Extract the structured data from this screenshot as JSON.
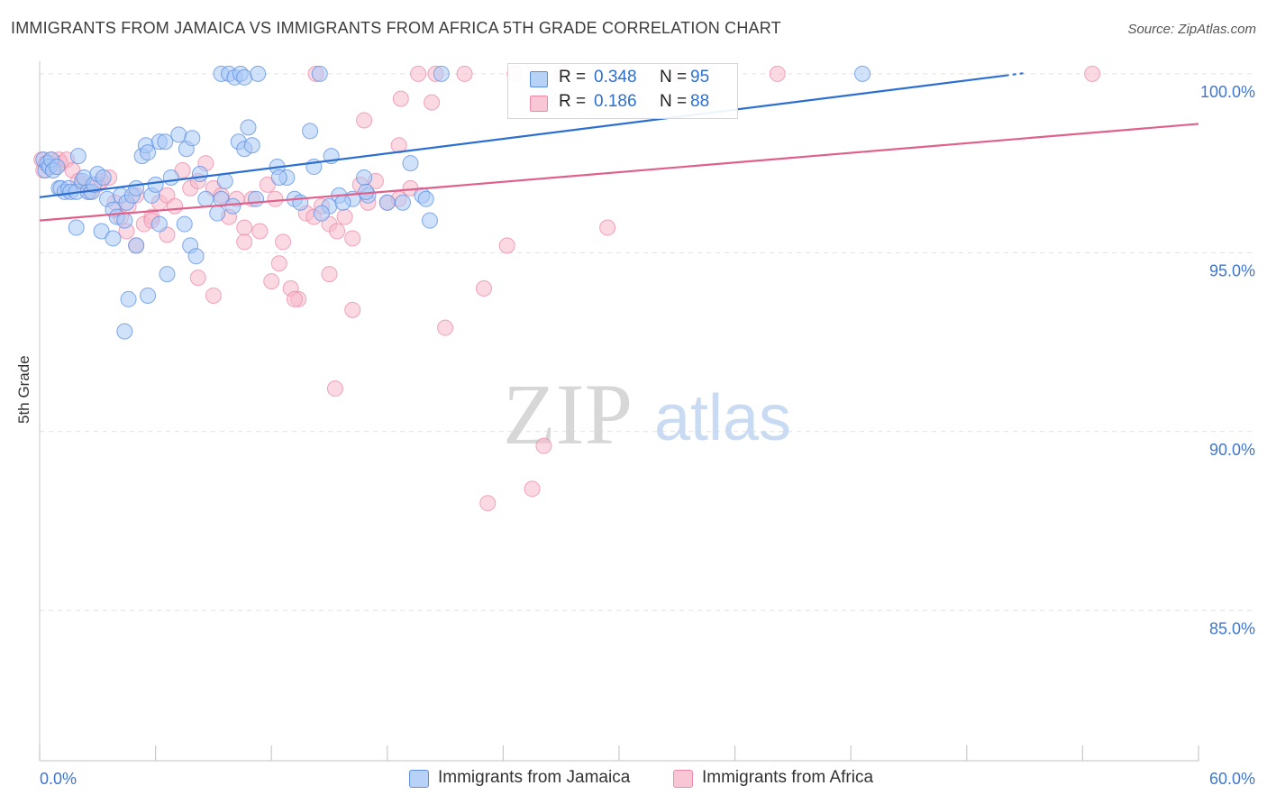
{
  "title": "IMMIGRANTS FROM JAMAICA VS IMMIGRANTS FROM AFRICA 5TH GRADE CORRELATION CHART",
  "source": "Source: ZipAtlas.com",
  "watermark": {
    "zip": "ZIP",
    "atlas": "atlas"
  },
  "colors": {
    "jamaica_fill": "#a9c8f5",
    "jamaica_stroke": "#5b8fe0",
    "jamaica_line": "#2c6fd1",
    "africa_fill": "#f7b9cc",
    "africa_stroke": "#ea8aa8",
    "africa_line": "#e0608c",
    "grid": "#e1e1e1",
    "tick_label": "#3f76cf"
  },
  "legend": {
    "jamaica": {
      "r_label": "R =",
      "r_value": "0.348",
      "n_label": "N =",
      "n_value": "95"
    },
    "africa": {
      "r_label": "R =",
      "r_value": "0.186",
      "n_label": "N =",
      "n_value": "88"
    }
  },
  "bottom_legend": {
    "jamaica": "Immigrants from Jamaica",
    "africa": "Immigrants from Africa"
  },
  "chart_data": {
    "type": "scatter",
    "title": "IMMIGRANTS FROM JAMAICA VS IMMIGRANTS FROM AFRICA 5TH GRADE CORRELATION CHART",
    "xlabel": "",
    "ylabel": "5th Grade",
    "xlim": [
      0,
      60
    ],
    "ylim": [
      80.8,
      100.5
    ],
    "x_tick_labels": [
      "0.0%",
      "60.0%"
    ],
    "y_ticks": [
      85,
      90,
      95,
      100
    ],
    "y_tick_labels": [
      "85.0%",
      "90.0%",
      "95.0%",
      "100.0%"
    ],
    "grid": true,
    "legend_position": "top-center",
    "series": [
      {
        "name": "Immigrants from Jamaica",
        "R": 0.348,
        "N": 95,
        "trend": {
          "x": [
            0,
            50
          ],
          "y": [
            96.55,
            99.95
          ]
        },
        "points": [
          [
            0.2,
            97.6
          ],
          [
            0.3,
            97.3
          ],
          [
            0.4,
            97.5
          ],
          [
            0.5,
            97.4
          ],
          [
            0.6,
            97.6
          ],
          [
            0.7,
            97.3
          ],
          [
            0.9,
            97.4
          ],
          [
            1.0,
            96.8
          ],
          [
            1.1,
            96.8
          ],
          [
            1.3,
            96.7
          ],
          [
            1.5,
            96.8
          ],
          [
            1.6,
            96.7
          ],
          [
            1.9,
            96.7
          ],
          [
            2.0,
            97.7
          ],
          [
            2.2,
            97.0
          ],
          [
            2.3,
            97.1
          ],
          [
            2.5,
            96.7
          ],
          [
            2.7,
            96.7
          ],
          [
            2.8,
            96.9
          ],
          [
            3.0,
            97.2
          ],
          [
            3.3,
            97.1
          ],
          [
            3.5,
            96.5
          ],
          [
            3.8,
            96.2
          ],
          [
            4.0,
            96.0
          ],
          [
            4.2,
            96.6
          ],
          [
            4.4,
            95.9
          ],
          [
            4.5,
            96.4
          ],
          [
            4.8,
            96.6
          ],
          [
            5.0,
            96.8
          ],
          [
            5.3,
            97.7
          ],
          [
            5.5,
            98.0
          ],
          [
            5.6,
            97.8
          ],
          [
            5.8,
            96.6
          ],
          [
            6.0,
            96.9
          ],
          [
            6.2,
            98.1
          ],
          [
            6.5,
            98.1
          ],
          [
            6.8,
            97.1
          ],
          [
            7.2,
            98.3
          ],
          [
            7.6,
            97.9
          ],
          [
            7.9,
            98.2
          ],
          [
            8.3,
            97.2
          ],
          [
            8.6,
            96.5
          ],
          [
            9.2,
            96.1
          ],
          [
            9.6,
            97.0
          ],
          [
            10.3,
            98.1
          ],
          [
            10.6,
            97.9
          ],
          [
            10.8,
            98.5
          ],
          [
            11.0,
            98.0
          ],
          [
            12.3,
            97.4
          ],
          [
            12.8,
            97.1
          ],
          [
            13.2,
            96.5
          ],
          [
            14.0,
            98.4
          ],
          [
            14.2,
            97.4
          ],
          [
            15.0,
            96.3
          ],
          [
            15.1,
            97.7
          ],
          [
            15.5,
            96.6
          ],
          [
            16.2,
            96.5
          ],
          [
            16.8,
            97.1
          ],
          [
            17.0,
            96.6
          ],
          [
            18.8,
            96.4
          ],
          [
            19.2,
            97.5
          ],
          [
            19.8,
            96.6
          ],
          [
            20.0,
            96.5
          ],
          [
            20.2,
            95.9
          ],
          [
            1.9,
            95.7
          ],
          [
            3.2,
            95.6
          ],
          [
            3.8,
            95.4
          ],
          [
            5.0,
            95.2
          ],
          [
            6.6,
            94.4
          ],
          [
            7.8,
            95.2
          ],
          [
            8.1,
            94.9
          ],
          [
            4.6,
            93.7
          ],
          [
            5.6,
            93.8
          ],
          [
            4.4,
            92.8
          ],
          [
            6.2,
            95.8
          ],
          [
            7.5,
            95.8
          ],
          [
            9.4,
            96.5
          ],
          [
            10.0,
            96.3
          ],
          [
            11.2,
            96.5
          ],
          [
            12.4,
            97.1
          ],
          [
            13.5,
            96.4
          ],
          [
            14.6,
            96.1
          ],
          [
            15.7,
            96.4
          ],
          [
            16.9,
            96.7
          ],
          [
            18.0,
            96.4
          ],
          [
            9.4,
            100.0
          ],
          [
            9.8,
            100.0
          ],
          [
            10.1,
            99.9
          ],
          [
            10.4,
            100.0
          ],
          [
            10.6,
            99.9
          ],
          [
            11.3,
            100.0
          ],
          [
            14.5,
            100.0
          ],
          [
            20.8,
            100.0
          ],
          [
            26.3,
            99.4
          ],
          [
            42.6,
            100.0
          ]
        ]
      },
      {
        "name": "Immigrants from Africa",
        "R": 0.186,
        "N": 88,
        "trend": {
          "x": [
            0,
            60
          ],
          "y": [
            95.9,
            98.6
          ]
        },
        "points": [
          [
            0.1,
            97.6
          ],
          [
            0.2,
            97.3
          ],
          [
            0.3,
            97.5
          ],
          [
            0.5,
            97.4
          ],
          [
            0.6,
            97.6
          ],
          [
            0.8,
            97.4
          ],
          [
            1.0,
            97.6
          ],
          [
            1.1,
            97.5
          ],
          [
            1.4,
            97.6
          ],
          [
            1.7,
            97.3
          ],
          [
            2.0,
            97.0
          ],
          [
            2.2,
            96.9
          ],
          [
            2.6,
            96.7
          ],
          [
            3.0,
            96.9
          ],
          [
            3.2,
            97.0
          ],
          [
            3.6,
            97.1
          ],
          [
            3.9,
            96.4
          ],
          [
            4.2,
            96.0
          ],
          [
            4.6,
            96.3
          ],
          [
            5.0,
            96.6
          ],
          [
            5.4,
            95.8
          ],
          [
            5.8,
            96.0
          ],
          [
            6.2,
            96.4
          ],
          [
            6.6,
            96.6
          ],
          [
            7.0,
            96.3
          ],
          [
            7.4,
            97.3
          ],
          [
            7.8,
            96.8
          ],
          [
            8.2,
            97.0
          ],
          [
            8.6,
            97.5
          ],
          [
            9.0,
            96.8
          ],
          [
            9.4,
            96.6
          ],
          [
            9.8,
            96.0
          ],
          [
            10.2,
            96.5
          ],
          [
            10.6,
            95.7
          ],
          [
            11.0,
            96.5
          ],
          [
            11.4,
            95.6
          ],
          [
            11.8,
            96.9
          ],
          [
            12.2,
            96.5
          ],
          [
            12.6,
            95.3
          ],
          [
            13.0,
            94.0
          ],
          [
            13.4,
            93.7
          ],
          [
            13.8,
            96.1
          ],
          [
            14.2,
            96.0
          ],
          [
            14.6,
            96.3
          ],
          [
            15.0,
            95.8
          ],
          [
            15.4,
            95.6
          ],
          [
            15.8,
            96.0
          ],
          [
            16.2,
            95.4
          ],
          [
            16.6,
            96.9
          ],
          [
            17.0,
            96.4
          ],
          [
            17.4,
            97.0
          ],
          [
            18.0,
            96.4
          ],
          [
            18.6,
            96.5
          ],
          [
            19.2,
            96.8
          ],
          [
            4.5,
            95.6
          ],
          [
            5.0,
            95.2
          ],
          [
            5.8,
            95.9
          ],
          [
            6.6,
            95.5
          ],
          [
            8.2,
            94.3
          ],
          [
            9.0,
            93.8
          ],
          [
            10.6,
            95.3
          ],
          [
            12.0,
            94.2
          ],
          [
            12.4,
            94.7
          ],
          [
            13.2,
            93.7
          ],
          [
            15.0,
            94.4
          ],
          [
            16.2,
            93.4
          ],
          [
            21.0,
            92.9
          ],
          [
            23.0,
            94.0
          ],
          [
            24.2,
            95.2
          ],
          [
            29.4,
            95.7
          ],
          [
            15.3,
            91.2
          ],
          [
            26.1,
            89.6
          ],
          [
            25.5,
            88.4
          ],
          [
            23.2,
            88.0
          ],
          [
            18.7,
            99.3
          ],
          [
            19.6,
            100.0
          ],
          [
            20.3,
            99.2
          ],
          [
            16.8,
            98.7
          ],
          [
            18.6,
            98.0
          ],
          [
            14.3,
            100.0
          ],
          [
            20.5,
            100.0
          ],
          [
            22.0,
            100.0
          ],
          [
            24.6,
            100.0
          ],
          [
            27.0,
            100.0
          ],
          [
            29.8,
            100.0
          ],
          [
            33.1,
            100.0
          ],
          [
            38.2,
            100.0
          ],
          [
            54.5,
            100.0
          ]
        ]
      }
    ]
  }
}
